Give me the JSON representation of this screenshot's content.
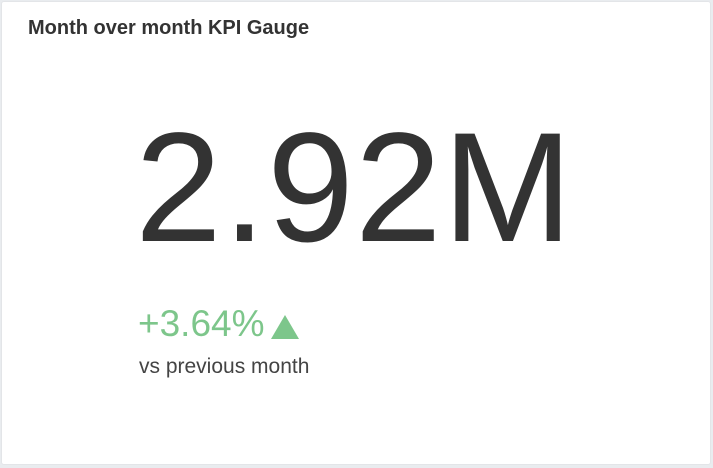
{
  "widget": {
    "title": "Month over month KPI Gauge",
    "value": "2.92M",
    "change": "+3.64%",
    "change_direction_icon": "triangle-up-icon",
    "comparison_label": "vs previous month"
  },
  "colors": {
    "positive": "#7dc68b",
    "text": "#333333",
    "background": "#ffffff"
  }
}
